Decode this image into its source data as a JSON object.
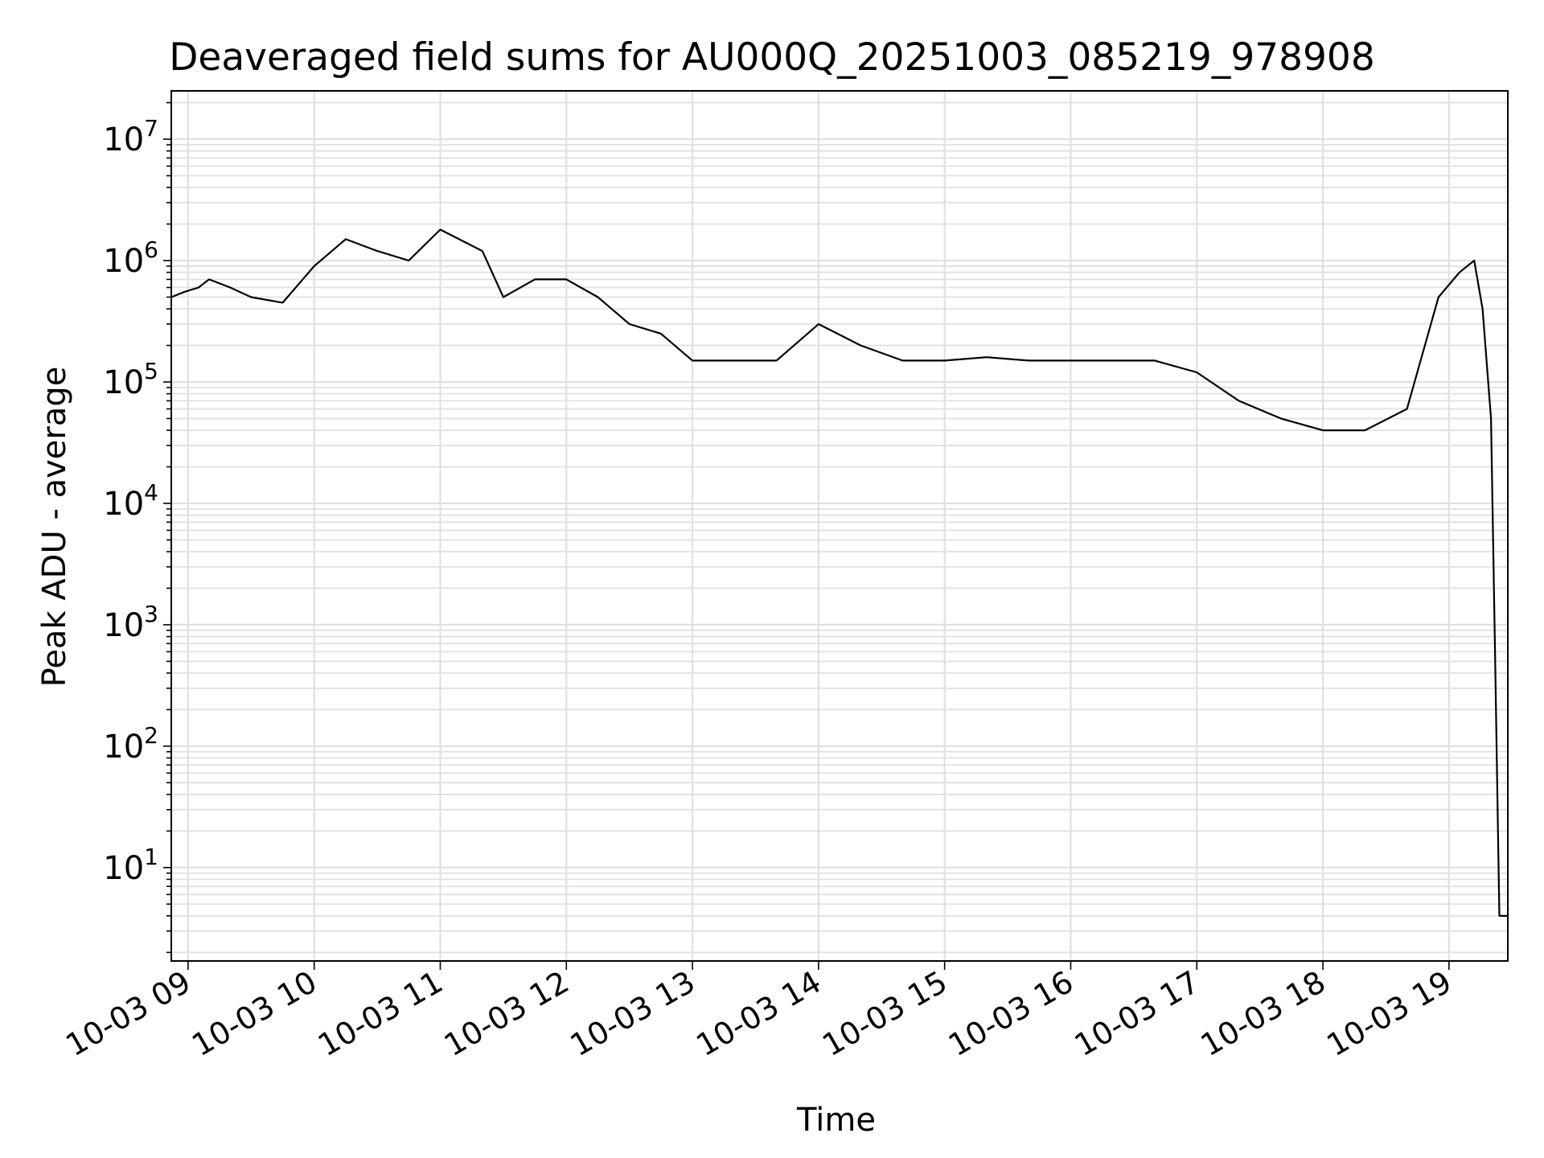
{
  "chart_data": {
    "type": "line",
    "title": "Deaveraged field sums for AU000Q_20251003_085219_978908",
    "xlabel": "Time",
    "ylabel": "Peak ADU - average",
    "yscale": "log",
    "ylim": [
      1.7,
      25000000
    ],
    "xlim": [
      "10-03 08:52",
      "10-03 19:28"
    ],
    "grid": true,
    "color": "#000000",
    "x_ticks": [
      "10-03 09",
      "10-03 10",
      "10-03 11",
      "10-03 12",
      "10-03 13",
      "10-03 14",
      "10-03 15",
      "10-03 16",
      "10-03 17",
      "10-03 18",
      "10-03 19"
    ],
    "y_ticks": [
      {
        "value": 10,
        "base": "10",
        "exp": "1"
      },
      {
        "value": 100,
        "base": "10",
        "exp": "2"
      },
      {
        "value": 1000,
        "base": "10",
        "exp": "3"
      },
      {
        "value": 10000,
        "base": "10",
        "exp": "4"
      },
      {
        "value": 100000,
        "base": "10",
        "exp": "5"
      },
      {
        "value": 1000000,
        "base": "10",
        "exp": "6"
      },
      {
        "value": 10000000,
        "base": "10",
        "exp": "7"
      }
    ],
    "series": [
      {
        "x": [
          "10-03 08:52",
          "10-03 08:58",
          "10-03 09:05",
          "10-03 09:10",
          "10-03 09:20",
          "10-03 09:30",
          "10-03 09:45",
          "10-03 10:00",
          "10-03 10:15",
          "10-03 10:30",
          "10-03 10:45",
          "10-03 11:00",
          "10-03 11:20",
          "10-03 11:30",
          "10-03 11:45",
          "10-03 12:00",
          "10-03 12:15",
          "10-03 12:30",
          "10-03 12:45",
          "10-03 13:00",
          "10-03 13:20",
          "10-03 13:40",
          "10-03 14:00",
          "10-03 14:20",
          "10-03 14:40",
          "10-03 15:00",
          "10-03 15:20",
          "10-03 15:40",
          "10-03 16:00",
          "10-03 16:20",
          "10-03 16:40",
          "10-03 17:00",
          "10-03 17:20",
          "10-03 17:40",
          "10-03 18:00",
          "10-03 18:20",
          "10-03 18:40",
          "10-03 18:55",
          "10-03 19:05",
          "10-03 19:12",
          "10-03 19:16",
          "10-03 19:20",
          "10-03 19:22",
          "10-03 19:24",
          "10-03 19:28"
        ],
        "y": [
          500000,
          550000,
          600000,
          700000,
          600000,
          500000,
          450000,
          900000,
          1500000,
          1200000,
          1000000,
          1800000,
          1200000,
          500000,
          700000,
          700000,
          500000,
          300000,
          250000,
          150000,
          150000,
          150000,
          300000,
          200000,
          150000,
          150000,
          160000,
          150000,
          150000,
          150000,
          150000,
          120000,
          70000,
          50000,
          40000,
          40000,
          60000,
          500000,
          800000,
          1000000,
          400000,
          50000,
          500,
          4,
          4
        ]
      }
    ]
  }
}
